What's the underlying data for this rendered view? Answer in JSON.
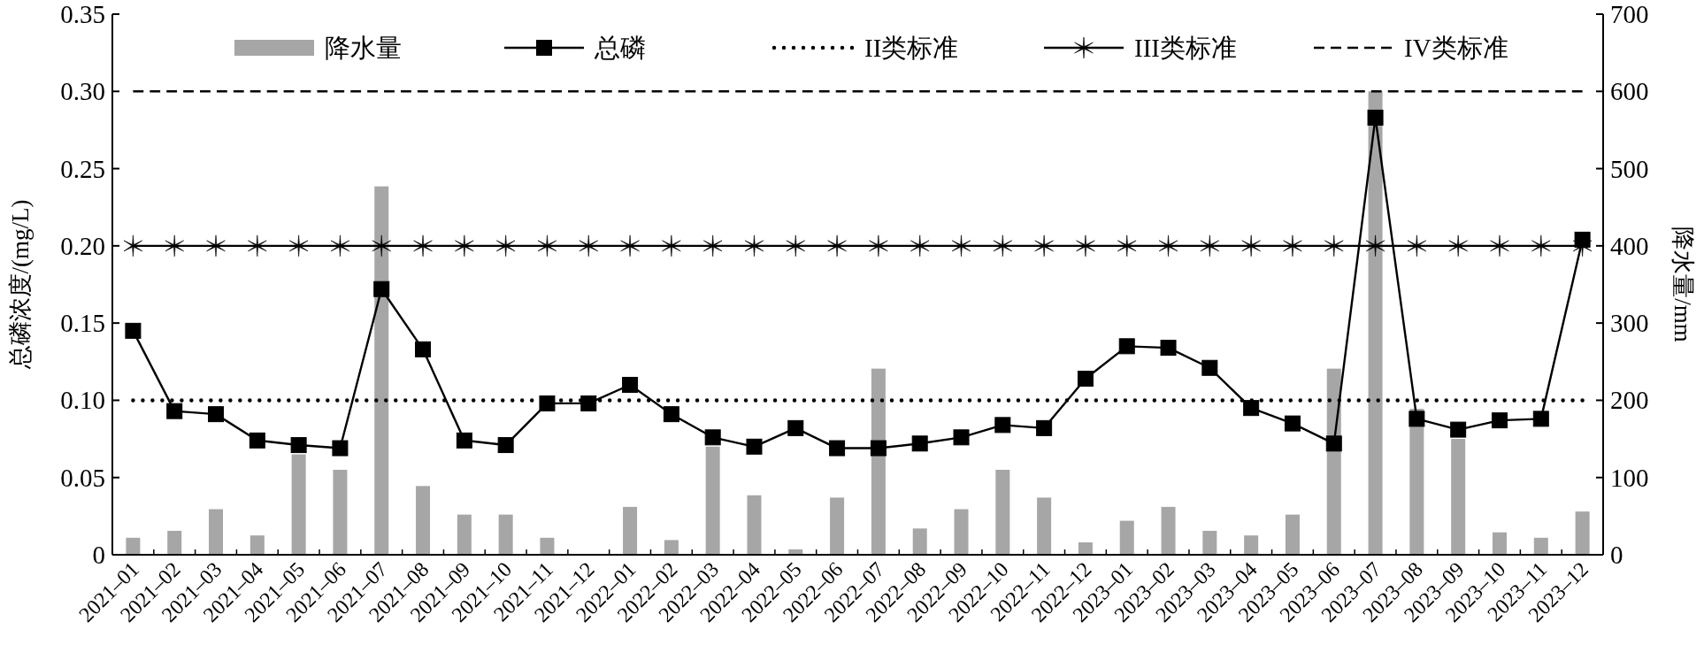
{
  "chart_data": {
    "type": "line",
    "categories": [
      "2021–01",
      "2021–02",
      "2021–03",
      "2021–04",
      "2021–05",
      "2021–06",
      "2021–07",
      "2021–08",
      "2021–09",
      "2021–10",
      "2021–11",
      "2021–12",
      "2022–01",
      "2022–02",
      "2022–03",
      "2022–04",
      "2022–05",
      "2022–06",
      "2022–07",
      "2022–08",
      "2022–09",
      "2022–10",
      "2022–11",
      "2022–12",
      "2023–01",
      "2023–02",
      "2023–03",
      "2023–04",
      "2023–05",
      "2023–06",
      "2023–07",
      "2023–08",
      "2023–09",
      "2023–10",
      "2023–11",
      "2023–12"
    ],
    "ylabel": "总磷浓度/(mg/L)",
    "y2label": "降水量/mm",
    "ylim": [
      0,
      0.35
    ],
    "yticks": [
      0,
      {
        "value": 0.05,
        "label": "0.05"
      },
      {
        "value": 0.1,
        "label": "0.10"
      },
      {
        "value": 0.15,
        "label": "0.15"
      },
      {
        "value": 0.2,
        "label": "0.20"
      },
      {
        "value": 0.25,
        "label": "0.25"
      },
      {
        "value": 0.3,
        "label": "0.30"
      },
      {
        "value": 0.35,
        "label": "0.35"
      }
    ],
    "y2lim": [
      0,
      700
    ],
    "y2ticks": [
      0,
      100,
      200,
      300,
      400,
      500,
      600,
      700
    ],
    "legend": "top",
    "grid": false,
    "series": [
      {
        "name": "降水量",
        "type": "bar",
        "axis": "y2",
        "color": "#a6a6a6",
        "values": [
          22,
          31,
          59,
          25,
          130,
          110,
          477,
          89,
          52,
          52,
          22,
          1,
          62,
          19,
          140,
          77,
          7,
          74,
          241,
          34,
          59,
          110,
          74,
          16,
          44,
          62,
          31,
          25,
          52,
          241,
          600,
          189,
          150,
          29,
          22,
          56
        ]
      },
      {
        "name": "总磷",
        "color": "#000000",
        "marker": "square",
        "line_style": "solid",
        "values": [
          0.145,
          0.093,
          0.091,
          0.074,
          0.071,
          0.069,
          0.172,
          0.133,
          0.074,
          0.071,
          0.098,
          0.098,
          0.11,
          0.091,
          0.076,
          0.07,
          0.082,
          0.069,
          0.069,
          0.072,
          0.076,
          0.084,
          0.082,
          0.114,
          0.135,
          0.134,
          0.121,
          0.095,
          0.085,
          0.072,
          0.283,
          0.088,
          0.081,
          0.087,
          0.088,
          0.204
        ]
      },
      {
        "name": "II类标准",
        "color": "#000000",
        "marker": "none",
        "line_style": "dotted",
        "values": [
          0.1,
          0.1,
          0.1,
          0.1,
          0.1,
          0.1,
          0.1,
          0.1,
          0.1,
          0.1,
          0.1,
          0.1,
          0.1,
          0.1,
          0.1,
          0.1,
          0.1,
          0.1,
          0.1,
          0.1,
          0.1,
          0.1,
          0.1,
          0.1,
          0.1,
          0.1,
          0.1,
          0.1,
          0.1,
          0.1,
          0.1,
          0.1,
          0.1,
          0.1,
          0.1,
          0.1
        ]
      },
      {
        "name": "III类标准",
        "color": "#000000",
        "marker": "cross",
        "line_style": "solid",
        "values": [
          0.2,
          0.2,
          0.2,
          0.2,
          0.2,
          0.2,
          0.2,
          0.2,
          0.2,
          0.2,
          0.2,
          0.2,
          0.2,
          0.2,
          0.2,
          0.2,
          0.2,
          0.2,
          0.2,
          0.2,
          0.2,
          0.2,
          0.2,
          0.2,
          0.2,
          0.2,
          0.2,
          0.2,
          0.2,
          0.2,
          0.2,
          0.2,
          0.2,
          0.2,
          0.2,
          0.2
        ]
      },
      {
        "name": "IV类标准",
        "color": "#000000",
        "marker": "none",
        "line_style": "dashed",
        "values": [
          0.3,
          0.3,
          0.3,
          0.3,
          0.3,
          0.3,
          0.3,
          0.3,
          0.3,
          0.3,
          0.3,
          0.3,
          0.3,
          0.3,
          0.3,
          0.3,
          0.3,
          0.3,
          0.3,
          0.3,
          0.3,
          0.3,
          0.3,
          0.3,
          0.3,
          0.3,
          0.3,
          0.3,
          0.3,
          0.3,
          0.3,
          0.3,
          0.3,
          0.3,
          0.3,
          0.3
        ]
      }
    ]
  }
}
